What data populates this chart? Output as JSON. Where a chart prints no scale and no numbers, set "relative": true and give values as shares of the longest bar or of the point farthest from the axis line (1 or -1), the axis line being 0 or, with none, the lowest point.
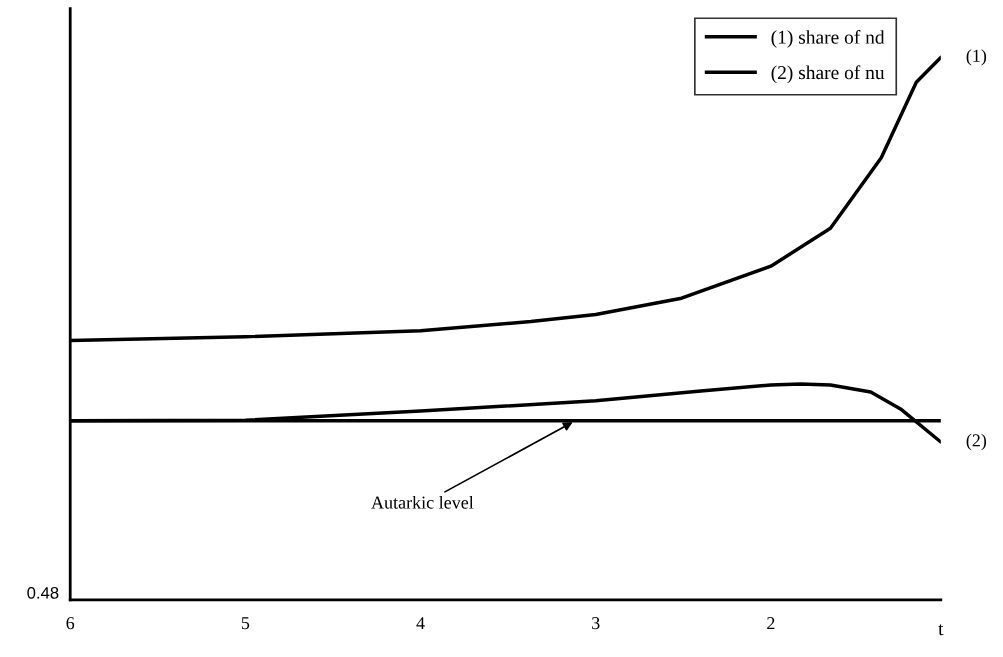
{
  "chart_data": {
    "type": "line",
    "relative": true,
    "xlabel": "t",
    "xlim": [
      6,
      1.03
    ],
    "xticks": [
      6,
      5,
      4,
      3,
      2
    ],
    "series": [
      {
        "name": "(1) share of nd",
        "color": "#000000",
        "x": [
          6,
          5,
          4,
          3.37,
          3,
          2.51,
          2,
          1.66,
          1.37,
          1.17,
          1.03
        ],
        "values": [
          0.478,
          0.485,
          0.496,
          0.513,
          0.526,
          0.556,
          0.615,
          0.685,
          0.815,
          0.954,
          1
        ]
      },
      {
        "name": "(2) share of nu",
        "color": "#000000",
        "x": [
          6,
          5,
          4,
          3,
          2.4,
          2,
          1.83,
          1.66,
          1.43,
          1.26,
          1.03
        ],
        "values": [
          0.33,
          0.331,
          0.348,
          0.367,
          0.385,
          0.396,
          0.398,
          0.396,
          0.383,
          0.352,
          0.291
        ]
      }
    ],
    "ref_lines": [
      {
        "axis": "y",
        "value": 0.33,
        "label": "Autarkic level",
        "color": "#000000"
      }
    ],
    "annotations": [
      {
        "text": "(1)",
        "x": 1.03,
        "y": 1
      },
      {
        "text": "(2)",
        "x": 1.03,
        "y": 0.291
      },
      "0.48"
    ],
    "legend": "top right",
    "grid": false,
    "marker": "none",
    "line_style": "solid"
  }
}
